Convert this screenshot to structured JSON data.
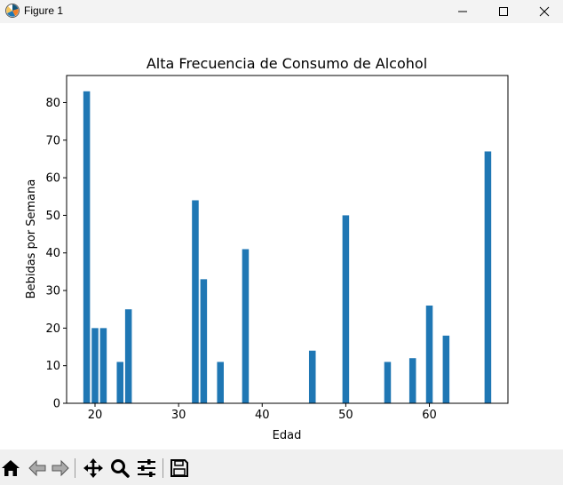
{
  "window": {
    "title": "Figure 1",
    "controls": [
      "minimize",
      "maximize",
      "close"
    ]
  },
  "toolbar": {
    "buttons": [
      {
        "name": "home",
        "icon": "home-icon"
      },
      {
        "name": "back",
        "icon": "arrow-left-icon"
      },
      {
        "name": "forward",
        "icon": "arrow-right-icon"
      },
      {
        "name": "pan",
        "icon": "move-icon"
      },
      {
        "name": "zoom",
        "icon": "magnifier-icon"
      },
      {
        "name": "configure",
        "icon": "sliders-icon"
      },
      {
        "name": "save",
        "icon": "floppy-icon"
      }
    ]
  },
  "chart_data": {
    "type": "bar",
    "title": "Alta Frecuencia de Consumo de Alcohol",
    "xlabel": "Edad",
    "ylabel": "Bebidas por Semana",
    "xlim": [
      16.6,
      69.4
    ],
    "ylim": [
      0,
      87.2
    ],
    "xticks": [
      20,
      30,
      40,
      50,
      60
    ],
    "yticks": [
      0,
      10,
      20,
      30,
      40,
      50,
      60,
      70,
      80
    ],
    "bar_width": 0.8,
    "color": "#1f77b4",
    "grid": false,
    "x": [
      19,
      20,
      21,
      23,
      24,
      32,
      33,
      35,
      38,
      46,
      50,
      55,
      58,
      60,
      62,
      67
    ],
    "values": [
      83,
      20,
      20,
      11,
      25,
      54,
      33,
      11,
      41,
      14,
      50,
      11,
      12,
      26,
      18,
      67
    ]
  }
}
